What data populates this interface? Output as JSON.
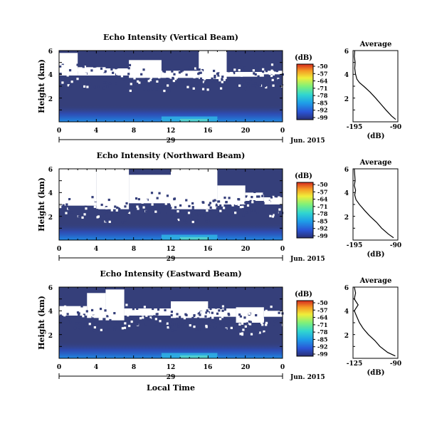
{
  "chart_data": [
    {
      "type": "heatmap",
      "title": "Echo Intensity (Vertical Beam)",
      "ylabel": "Height (km)",
      "yticks": [
        "2",
        "4",
        "6"
      ],
      "ylim": [
        0,
        6
      ],
      "xticks": [
        "0",
        "4",
        "8",
        "12",
        "16",
        "20",
        "0"
      ],
      "xlim": [
        0,
        24
      ],
      "day_label": "29",
      "month_label": "Jun. 2015",
      "colorbar": {
        "unit": "(dB)",
        "ticks": [
          "-50",
          "-57",
          "-64",
          "-71",
          "-78",
          "-85",
          "-92",
          "-99"
        ]
      },
      "white_gap_km": [
        {
          "t": [
            0,
            2
          ],
          "bottom": 3.9,
          "top": 5.8
        },
        {
          "t": [
            2,
            5
          ],
          "bottom": 3.9,
          "top": 4.6
        },
        {
          "t": [
            5,
            7.5
          ],
          "bottom": 3.9,
          "top": 4.5
        },
        {
          "t": [
            7.5,
            11
          ],
          "bottom": 3.7,
          "top": 5.2
        },
        {
          "t": [
            11,
            15
          ],
          "bottom": 3.7,
          "top": 4.3
        },
        {
          "t": [
            15,
            18
          ],
          "bottom": 3.6,
          "top": 6.0
        },
        {
          "t": [
            18,
            22
          ],
          "bottom": 3.8,
          "top": 4.2
        },
        {
          "t": [
            22,
            24
          ],
          "bottom": 4.0,
          "top": 4.3
        }
      ],
      "scatter_noise": 0.22,
      "average_profile": {
        "title": "Average",
        "xlabel": "(dB)",
        "xticks": [
          "-195",
          "-90"
        ],
        "xlim": [
          -195,
          -90
        ],
        "yticks": [
          "2",
          "4",
          "6"
        ],
        "ylim": [
          0,
          6
        ],
        "height_km": [
          0.2,
          0.5,
          1.0,
          1.5,
          2.0,
          2.5,
          3.0,
          3.3,
          3.6,
          4.0,
          4.5,
          5.0,
          5.5,
          6.0
        ],
        "intensity_db": [
          -95,
          -105,
          -118,
          -130,
          -142,
          -155,
          -170,
          -180,
          -186,
          -189,
          -191,
          -190,
          -192,
          -191
        ]
      }
    },
    {
      "type": "heatmap",
      "title": "Echo Intensity (Northward Beam)",
      "ylabel": "Height (km)",
      "yticks": [
        "2",
        "4",
        "6"
      ],
      "ylim": [
        0,
        6
      ],
      "xticks": [
        "0",
        "4",
        "8",
        "12",
        "16",
        "20",
        "0"
      ],
      "xlim": [
        0,
        24
      ],
      "day_label": "29",
      "month_label": "Jun. 2015",
      "colorbar": {
        "unit": "(dB)",
        "ticks": [
          "-50",
          "-57",
          "-64",
          "-71",
          "-78",
          "-85",
          "-92",
          "-99"
        ]
      },
      "white_gap_km": [
        {
          "t": [
            0,
            4
          ],
          "bottom": 2.9,
          "top": 6.0
        },
        {
          "t": [
            4,
            7.5
          ],
          "bottom": 2.6,
          "top": 6.0
        },
        {
          "t": [
            7.5,
            12
          ],
          "bottom": 3.1,
          "top": 5.5
        },
        {
          "t": [
            12,
            17
          ],
          "bottom": 2.6,
          "top": 6.0
        },
        {
          "t": [
            17,
            20
          ],
          "bottom": 3.0,
          "top": 4.6
        },
        {
          "t": [
            20,
            22
          ],
          "bottom": 3.3,
          "top": 4.0
        },
        {
          "t": [
            22,
            24
          ],
          "bottom": 3.0,
          "top": 3.6
        }
      ],
      "scatter_noise": 0.25,
      "average_profile": {
        "title": "Average",
        "xlabel": "(dB)",
        "xticks": [
          "-195",
          "-90"
        ],
        "xlim": [
          -195,
          -90
        ],
        "yticks": [
          "2",
          "4",
          "6"
        ],
        "ylim": [
          0,
          6
        ],
        "height_km": [
          0.2,
          0.5,
          1.0,
          1.5,
          2.0,
          2.5,
          3.0,
          3.4,
          3.8,
          4.2,
          4.6,
          5.0,
          5.5,
          6.0
        ],
        "intensity_db": [
          -100,
          -112,
          -128,
          -140,
          -155,
          -168,
          -180,
          -188,
          -191,
          -189,
          -192,
          -190,
          -191,
          -192
        ]
      }
    },
    {
      "type": "heatmap",
      "title": "Echo Intensity (Eastward Beam)",
      "ylabel": "Height (km)",
      "yticks": [
        "2",
        "4",
        "6"
      ],
      "ylim": [
        0,
        6
      ],
      "xticks": [
        "0",
        "4",
        "8",
        "12",
        "16",
        "20",
        "0"
      ],
      "xlim": [
        0,
        24
      ],
      "day_label": "29",
      "month_label": "Jun. 2015",
      "xlabel": "Local Time",
      "colorbar": {
        "unit": "(dB)",
        "ticks": [
          "-50",
          "-57",
          "-64",
          "-71",
          "-78",
          "-85",
          "-92",
          "-99"
        ]
      },
      "white_gap_km": [
        {
          "t": [
            0,
            3
          ],
          "bottom": 3.6,
          "top": 4.4
        },
        {
          "t": [
            3,
            5
          ],
          "bottom": 3.4,
          "top": 5.5
        },
        {
          "t": [
            5,
            7
          ],
          "bottom": 3.2,
          "top": 5.8
        },
        {
          "t": [
            7,
            12
          ],
          "bottom": 3.6,
          "top": 4.2
        },
        {
          "t": [
            12,
            16
          ],
          "bottom": 3.4,
          "top": 4.8
        },
        {
          "t": [
            16,
            19
          ],
          "bottom": 3.5,
          "top": 4.2
        },
        {
          "t": [
            19,
            22
          ],
          "bottom": 3.0,
          "top": 4.3
        },
        {
          "t": [
            22,
            24
          ],
          "bottom": 3.5,
          "top": 4.0
        }
      ],
      "scatter_noise": 0.28,
      "average_profile": {
        "title": "Average",
        "xlabel": "(dB)",
        "xticks": [
          "-125",
          "-90"
        ],
        "xlim": [
          -125,
          -90
        ],
        "yticks": [
          "2",
          "4",
          "6"
        ],
        "ylim": [
          0,
          6
        ],
        "height_km": [
          0.2,
          0.5,
          1.0,
          1.5,
          2.0,
          2.5,
          3.0,
          3.5,
          4.0,
          4.5,
          5.0,
          5.5,
          6.0
        ],
        "intensity_db": [
          -92,
          -98,
          -104,
          -108,
          -113,
          -117,
          -120,
          -122,
          -124,
          -121,
          -124,
          -123,
          -124
        ]
      }
    }
  ],
  "colors": {
    "background_field": "#353f7a",
    "gap": "#ffffff",
    "colormap": [
      "#313a8a",
      "#2a55d6",
      "#1e9ee8",
      "#30d6d0",
      "#7ef07a",
      "#f0ee3a",
      "#f59a24",
      "#d62a1e"
    ]
  }
}
